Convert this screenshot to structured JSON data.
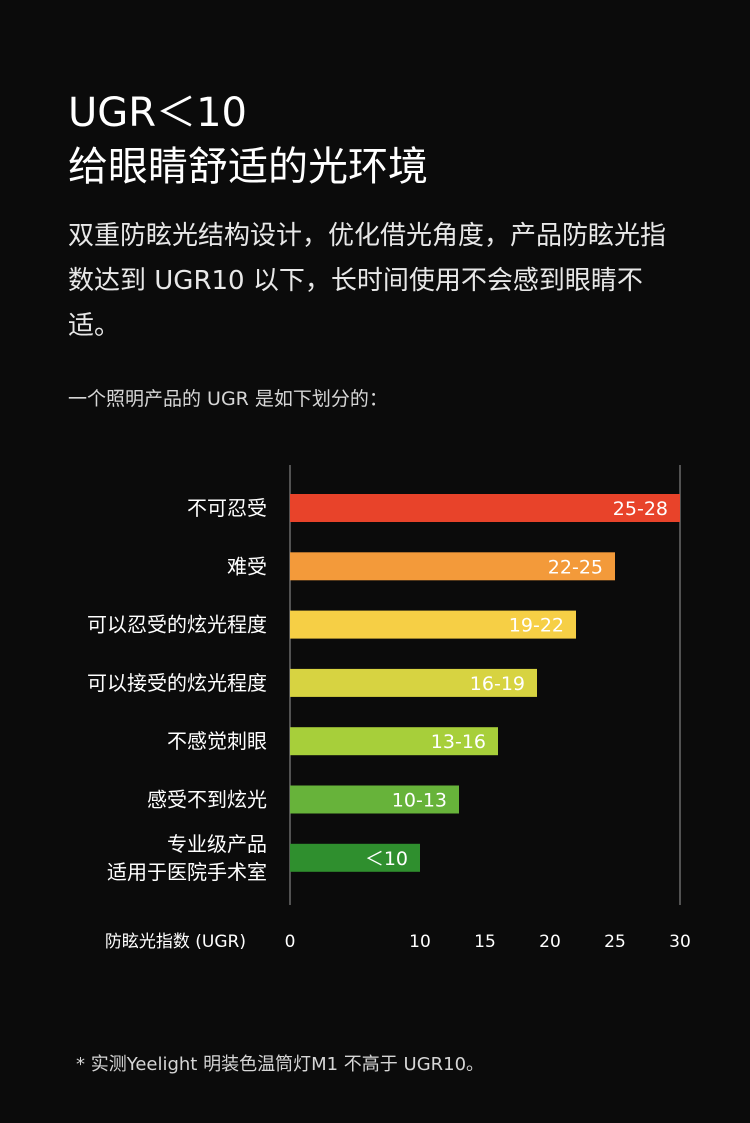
{
  "headline": {
    "line1": "UGR＜10",
    "line2": "给眼睛舒适的光环境"
  },
  "description": "双重防眩光结构设计，优化借光角度，产品防眩光指数达到 UGR10 以下，长时间使用不会感到眼睛不适。",
  "intro": "一个照明产品的 UGR 是如下划分的：",
  "chart_data": {
    "type": "bar",
    "orientation": "horizontal",
    "xlabel": "防眩光指数 (UGR)",
    "xlim": [
      0,
      30
    ],
    "xticks": [
      0,
      10,
      15,
      20,
      25,
      30
    ],
    "bars": [
      {
        "category": [
          "不可忍受"
        ],
        "value": 30,
        "label": "25-28",
        "color": "#e8432a"
      },
      {
        "category": [
          "难受"
        ],
        "value": 25,
        "label": "22-25",
        "color": "#f39a3a"
      },
      {
        "category": [
          "可以忍受的炫光程度"
        ],
        "value": 22,
        "label": "19-22",
        "color": "#f6cf45"
      },
      {
        "category": [
          "可以接受的炫光程度"
        ],
        "value": 19,
        "label": "16-19",
        "color": "#d7d341"
      },
      {
        "category": [
          "不感觉刺眼"
        ],
        "value": 16,
        "label": "13-16",
        "color": "#a7cf3a"
      },
      {
        "category": [
          "感受不到炫光"
        ],
        "value": 13,
        "label": "10-13",
        "color": "#67b33a"
      },
      {
        "category": [
          "专业级产品",
          "适用于医院手术室"
        ],
        "value": 10,
        "label": "＜10",
        "color": "#2f8f2e"
      }
    ]
  },
  "footnote": "* 实测Yeelight 明装色温筒灯M1 不高于 UGR10。"
}
